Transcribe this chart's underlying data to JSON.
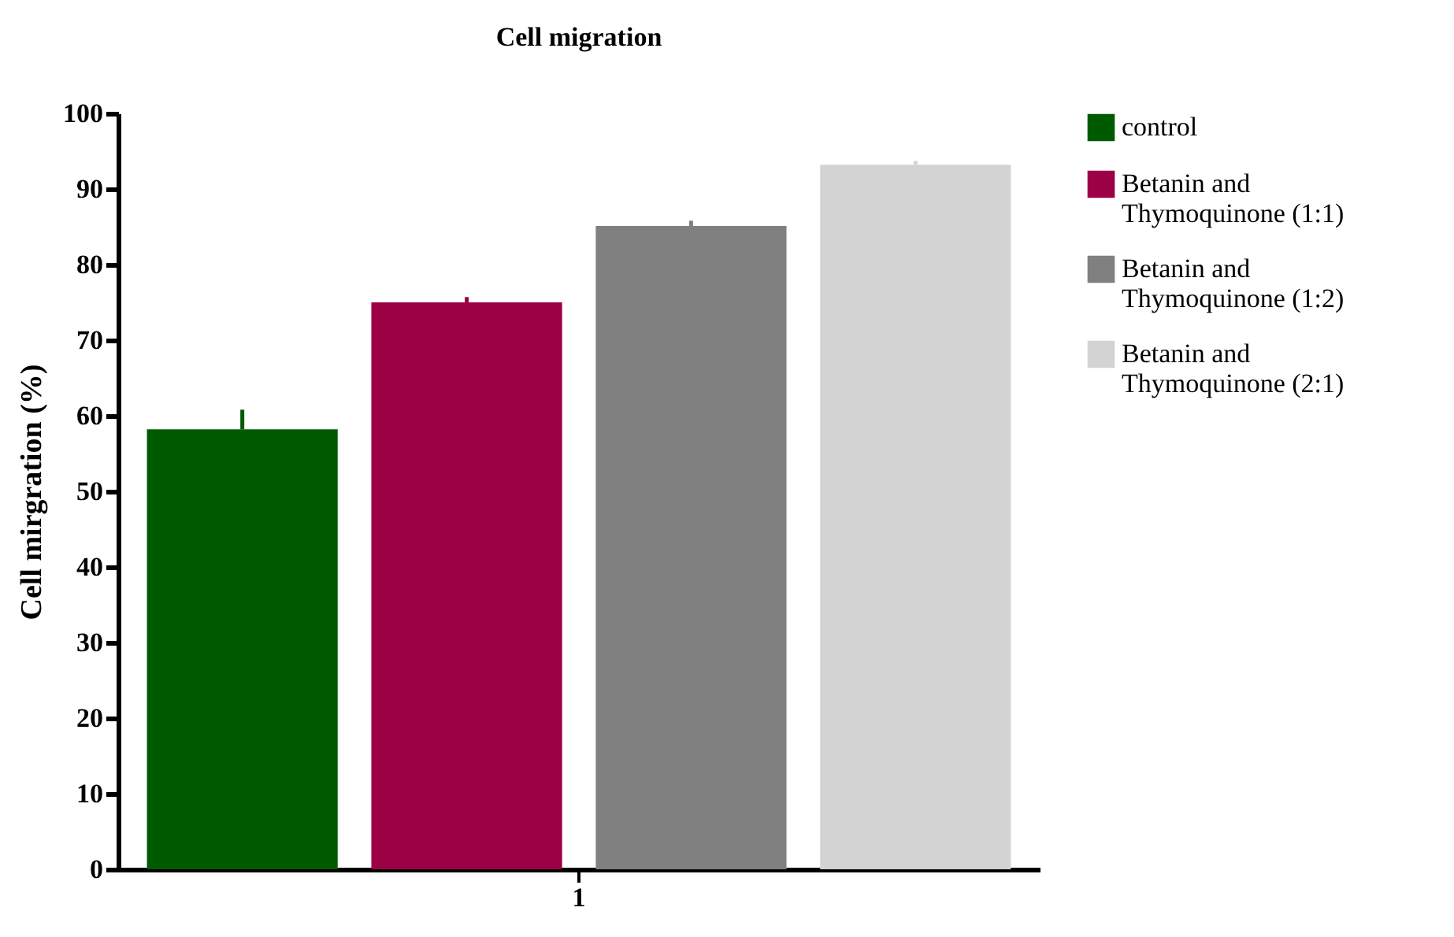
{
  "chart_data": {
    "type": "bar",
    "title": "Cell migration",
    "ylabel": "Cell mirgration (%)",
    "categories": [
      "1"
    ],
    "series": [
      {
        "name": "control",
        "color": "#005a00",
        "values": [
          58.2
        ],
        "errors": [
          2.6
        ]
      },
      {
        "name": "Betanin and Thymoquinone (1:1)",
        "color": "#9c0045",
        "values": [
          75.0
        ],
        "errors": [
          0.7
        ]
      },
      {
        "name": "Betanin and Thymoquinone (1:2)",
        "color": "#808080",
        "values": [
          85.1
        ],
        "errors": [
          0.7
        ]
      },
      {
        "name": "Betanin and Thymoquinone (2:1)",
        "color": "#d3d3d3",
        "values": [
          93.2
        ],
        "errors": [
          0.5
        ]
      }
    ],
    "ylim": [
      0,
      100
    ],
    "yticks": [
      0,
      10,
      20,
      30,
      40,
      50,
      60,
      70,
      80,
      90,
      100
    ],
    "grid": false,
    "legend": "right"
  }
}
